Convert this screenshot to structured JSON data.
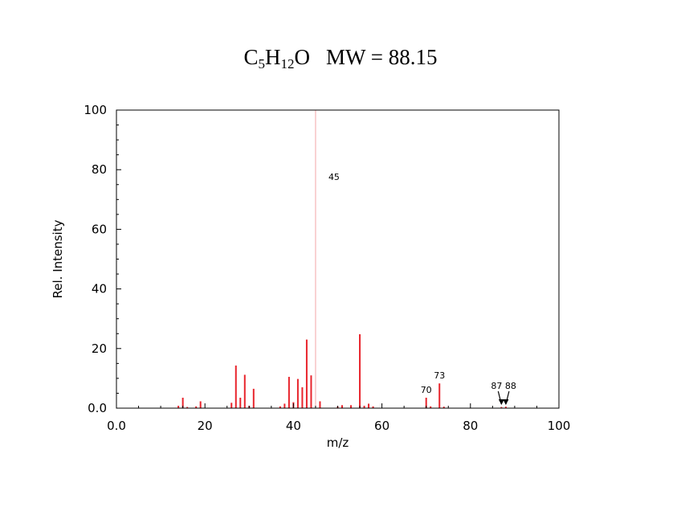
{
  "header": {
    "formula": {
      "c": "C",
      "c_count": "5",
      "h": "H",
      "h_count": "12",
      "o": "O"
    },
    "mw_text": "MW = 88.15"
  },
  "chart_data": {
    "type": "bar",
    "title": "",
    "xlabel": "m/z",
    "ylabel": "Rel. Intensity",
    "xlim": [
      0,
      100
    ],
    "ylim": [
      0,
      100
    ],
    "x_ticks": [
      "0.0",
      "20",
      "40",
      "60",
      "80",
      "100"
    ],
    "y_ticks": [
      "0.0",
      "20",
      "40",
      "60",
      "80",
      "100"
    ],
    "grid": false,
    "bar_color": "#e8242c",
    "peaks": [
      {
        "mz": 14,
        "intensity": 0.8
      },
      {
        "mz": 15,
        "intensity": 3.5
      },
      {
        "mz": 16,
        "intensity": 0.4
      },
      {
        "mz": 18,
        "intensity": 0.6
      },
      {
        "mz": 19,
        "intensity": 2.3
      },
      {
        "mz": 26,
        "intensity": 1.8
      },
      {
        "mz": 27,
        "intensity": 14.3
      },
      {
        "mz": 28,
        "intensity": 3.5
      },
      {
        "mz": 29,
        "intensity": 11.2
      },
      {
        "mz": 30,
        "intensity": 0.8
      },
      {
        "mz": 31,
        "intensity": 6.5
      },
      {
        "mz": 37,
        "intensity": 0.6
      },
      {
        "mz": 38,
        "intensity": 1.5
      },
      {
        "mz": 39,
        "intensity": 10.5
      },
      {
        "mz": 40,
        "intensity": 2.0
      },
      {
        "mz": 41,
        "intensity": 9.8
      },
      {
        "mz": 42,
        "intensity": 7.0
      },
      {
        "mz": 43,
        "intensity": 23.0
      },
      {
        "mz": 44,
        "intensity": 11.0
      },
      {
        "mz": 45,
        "intensity": 100.0
      },
      {
        "mz": 46,
        "intensity": 2.3
      },
      {
        "mz": 50,
        "intensity": 0.6
      },
      {
        "mz": 51,
        "intensity": 1.0
      },
      {
        "mz": 53,
        "intensity": 1.0
      },
      {
        "mz": 55,
        "intensity": 24.8
      },
      {
        "mz": 56,
        "intensity": 0.8
      },
      {
        "mz": 57,
        "intensity": 1.5
      },
      {
        "mz": 58,
        "intensity": 0.6
      },
      {
        "mz": 70,
        "intensity": 3.5
      },
      {
        "mz": 71,
        "intensity": 0.6
      },
      {
        "mz": 73,
        "intensity": 8.3
      },
      {
        "mz": 74,
        "intensity": 0.5
      },
      {
        "mz": 87,
        "intensity": 0.4
      },
      {
        "mz": 88,
        "intensity": 0.5
      }
    ],
    "labels": [
      {
        "text": "45",
        "mz": 45,
        "arrow": false
      },
      {
        "text": "70",
        "mz": 70,
        "arrow": false
      },
      {
        "text": "73",
        "mz": 73,
        "arrow": false
      },
      {
        "text": "87",
        "mz": 87,
        "arrow": true
      },
      {
        "text": "88",
        "mz": 88,
        "arrow": true
      }
    ]
  }
}
